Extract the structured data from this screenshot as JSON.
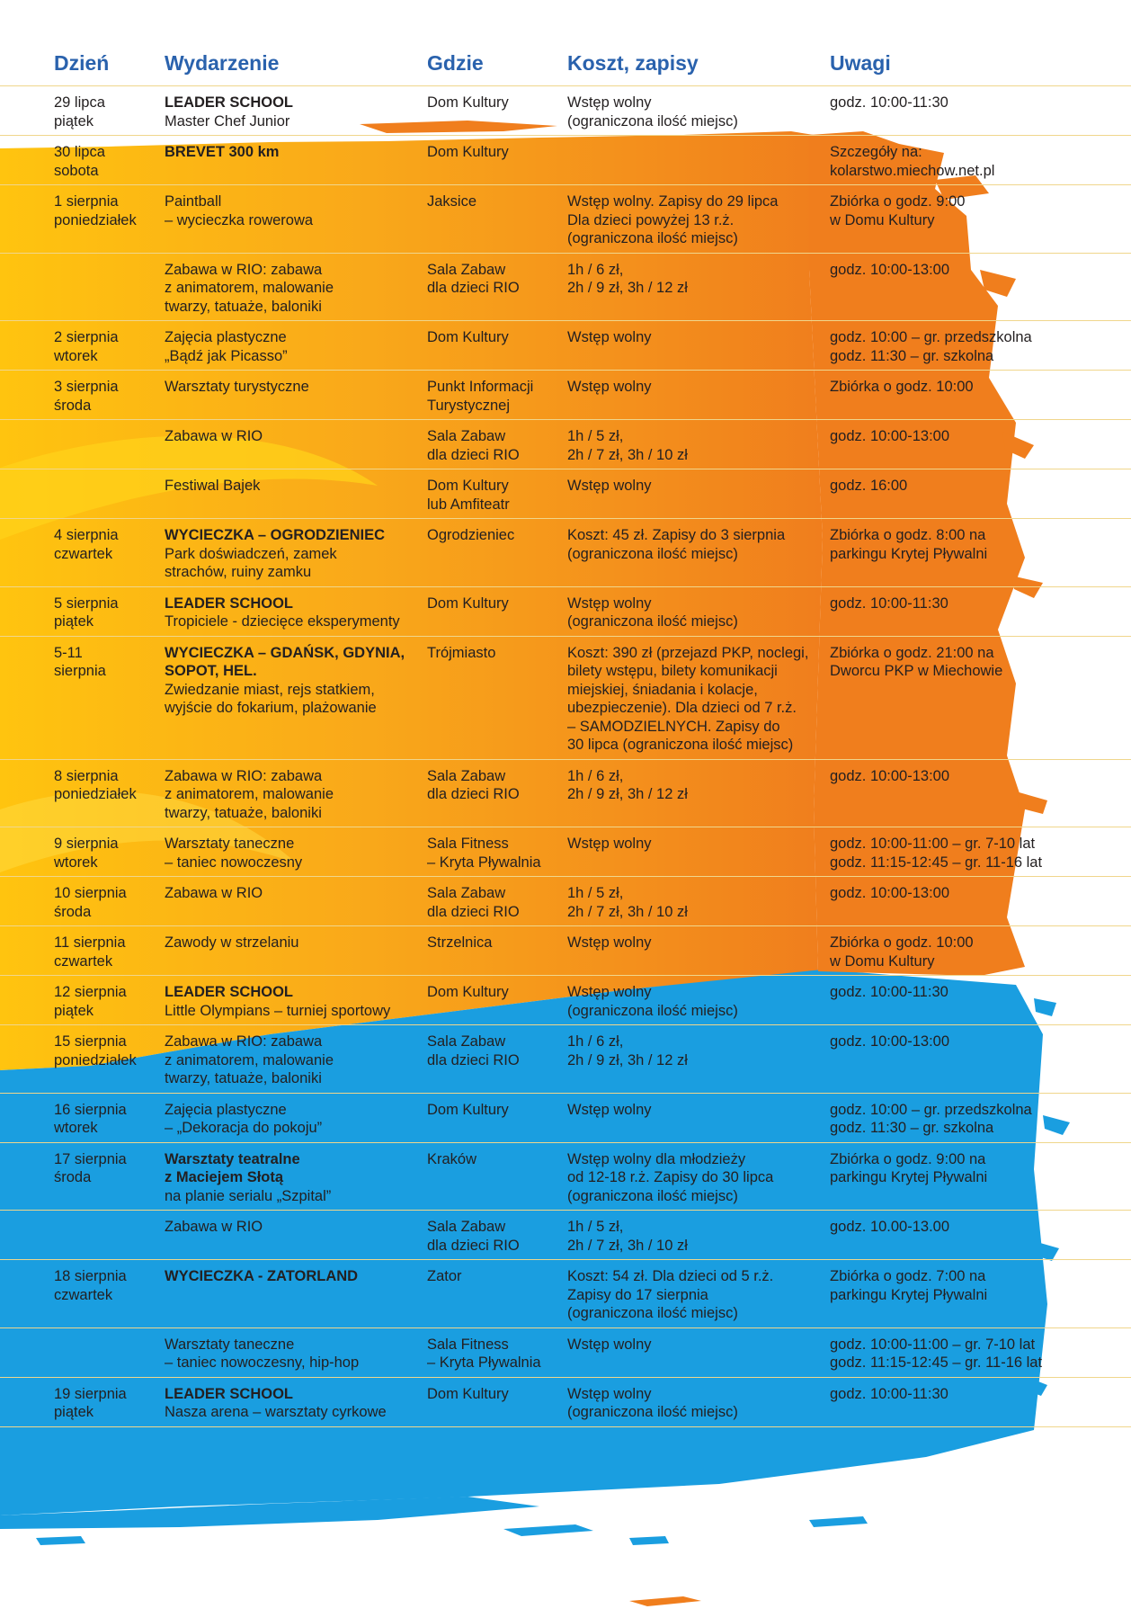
{
  "headers": {
    "day": "Dzień",
    "event": "Wydarzenie",
    "place": "Gdzie",
    "cost": "Koszt, zapisy",
    "notes": "Uwagi"
  },
  "colors": {
    "header_text": "#2a62ad",
    "rule": "#f0d68c",
    "orange": "#f08a1e",
    "yellow": "#fbb912",
    "blue": "#1a9ee0",
    "text": "#231f20"
  },
  "rows": [
    {
      "day": "29 lipca\npiątek",
      "title": "LEADER SCHOOL",
      "event": "Master Chef Junior",
      "place": "Dom Kultury",
      "cost": "Wstęp wolny\n(ograniczona ilość miejsc)",
      "notes": "godz. 10:00-11:30"
    },
    {
      "day": "30 lipca\nsobota",
      "title": "BREVET 300 km",
      "event": "",
      "place": "Dom Kultury",
      "cost": "",
      "notes": "Szczegóły na:\nkolarstwo.miechow.net.pl"
    },
    {
      "day": "1 sierpnia\nponiedziałek",
      "title": "",
      "event": "Paintball\n– wycieczka rowerowa",
      "place": "Jaksice",
      "cost": "Wstęp wolny. Zapisy do 29 lipca\nDla dzieci powyżej 13 r.ż.\n(ograniczona ilość miejsc)",
      "notes": "Zbiórka o godz. 9:00\nw Domu Kultury"
    },
    {
      "day": "",
      "title": "",
      "event": "Zabawa w RIO: zabawa\nz animatorem, malowanie\ntwarzy, tatuaże, baloniki",
      "place": "Sala Zabaw\ndla dzieci RIO",
      "cost": "1h / 6 zł,\n2h / 9 zł, 3h / 12 zł",
      "notes": "godz. 10:00-13:00"
    },
    {
      "day": "2 sierpnia\nwtorek",
      "title": "",
      "event": "Zajęcia plastyczne\n„Bądź jak Picasso”",
      "place": "Dom Kultury",
      "cost": "Wstęp wolny",
      "notes": "godz. 10:00 – gr. przedszkolna\ngodz. 11:30 – gr. szkolna"
    },
    {
      "day": "3 sierpnia\nśroda",
      "title": "",
      "event": "Warsztaty turystyczne",
      "place": "Punkt Informacji\nTurystycznej",
      "cost": "Wstęp wolny",
      "notes": "Zbiórka o godz. 10:00"
    },
    {
      "day": "",
      "title": "",
      "event": "Zabawa w RIO",
      "place": "Sala Zabaw\ndla dzieci RIO",
      "cost": "1h / 5 zł,\n2h / 7 zł, 3h / 10 zł",
      "notes": "godz. 10:00-13:00"
    },
    {
      "day": "",
      "title": "",
      "event": "Festiwal Bajek",
      "place": "Dom Kultury\nlub Amfiteatr",
      "cost": "Wstęp wolny",
      "notes": "godz. 16:00"
    },
    {
      "day": "4 sierpnia\nczwartek",
      "title": "WYCIECZKA – OGRODZIENIEC",
      "event": "Park doświadczeń, zamek\nstrachów, ruiny zamku",
      "place": "Ogrodzieniec",
      "cost": "Koszt: 45 zł. Zapisy do 3 sierpnia\n(ograniczona ilość miejsc)",
      "notes": "Zbiórka o godz. 8:00 na\nparkingu Krytej Pływalni"
    },
    {
      "day": "5 sierpnia\npiątek",
      "title": "LEADER SCHOOL",
      "event": "Tropiciele - dziecięce eksperymenty",
      "place": "Dom Kultury",
      "cost": "Wstęp wolny\n(ograniczona ilość miejsc)",
      "notes": "godz. 10:00-11:30"
    },
    {
      "day": "5-11\nsierpnia",
      "title": "WYCIECZKA – GDAŃSK, GDYNIA,\nSOPOT, HEL.",
      "event": "Zwiedzanie miast, rejs statkiem,\nwyjście do fokarium, plażowanie",
      "place": "Trójmiasto",
      "cost": "Koszt: 390 zł (przejazd PKP, noclegi,\nbilety wstępu, bilety komunikacji\nmiejskiej, śniadania i kolacje,\nubezpieczenie). Dla dzieci od 7 r.ż.\n– SAMODZIELNYCH. Zapisy do\n30 lipca (ograniczona ilość miejsc)",
      "notes": "Zbiórka o godz. 21:00 na\nDworcu PKP w Miechowie"
    },
    {
      "day": "8 sierpnia\nponiedziałek",
      "title": "",
      "event": "Zabawa w RIO: zabawa\nz animatorem, malowanie\ntwarzy, tatuaże, baloniki",
      "place": "Sala Zabaw\ndla dzieci RIO",
      "cost": "1h / 6 zł,\n2h / 9 zł, 3h / 12 zł",
      "notes": "godz. 10:00-13:00"
    },
    {
      "day": "9 sierpnia\nwtorek",
      "title": "",
      "event": "Warsztaty taneczne\n– taniec nowoczesny",
      "place": "Sala Fitness\n– Kryta Pływalnia",
      "cost": "Wstęp wolny",
      "notes": "godz. 10:00-11:00 – gr. 7-10 lat\ngodz. 11:15-12:45 – gr. 11-16 lat"
    },
    {
      "day": "10 sierpnia\nśroda",
      "title": "",
      "event": "Zabawa w RIO",
      "place": "Sala Zabaw\ndla dzieci RIO",
      "cost": "1h / 5 zł,\n2h / 7 zł, 3h / 10 zł",
      "notes": "godz. 10:00-13:00"
    },
    {
      "day": "11 sierpnia\nczwartek",
      "title": "",
      "event": "Zawody w strzelaniu",
      "place": "Strzelnica",
      "cost": "Wstęp wolny",
      "notes": "Zbiórka o godz. 10:00\nw Domu Kultury"
    },
    {
      "day": "12 sierpnia\npiątek",
      "title": "LEADER SCHOOL",
      "event": "Little Olympians – turniej sportowy",
      "place": "Dom Kultury",
      "cost": "Wstęp wolny\n(ograniczona ilość miejsc)",
      "notes": "godz. 10:00-11:30"
    },
    {
      "day": "15 sierpnia\nponiedziałek",
      "title": "",
      "event": "Zabawa w RIO: zabawa\nz animatorem, malowanie\ntwarzy, tatuaże, baloniki",
      "place": "Sala Zabaw\ndla dzieci RIO",
      "cost": "1h / 6 zł,\n2h / 9 zł, 3h / 12 zł",
      "notes": "godz. 10:00-13:00"
    },
    {
      "day": "16 sierpnia\nwtorek",
      "title": "",
      "event": "Zajęcia plastyczne\n– „Dekoracja do pokoju”",
      "place": "Dom Kultury",
      "cost": "Wstęp wolny",
      "notes": "godz. 10:00 – gr. przedszkolna\ngodz. 11:30 – gr. szkolna"
    },
    {
      "day": "17 sierpnia\nśroda",
      "title": "Warsztaty teatralne\nz Maciejem Słotą",
      "event": "na planie serialu „Szpital”",
      "place": "Kraków",
      "cost": "Wstęp wolny dla młodzieży\nod 12-18 r.ż. Zapisy do 30 lipca\n(ograniczona ilość miejsc)",
      "notes": "Zbiórka o godz. 9:00 na\nparkingu Krytej Pływalni"
    },
    {
      "day": "",
      "title": "",
      "event": "Zabawa w RIO",
      "place": "Sala Zabaw\ndla dzieci RIO",
      "cost": "1h / 5 zł,\n2h / 7 zł, 3h / 10 zł",
      "notes": "godz. 10.00-13.00"
    },
    {
      "day": "18 sierpnia\nczwartek",
      "title": "WYCIECZKA - ZATORLAND",
      "event": "",
      "place": "Zator",
      "cost": "Koszt: 54 zł. Dla dzieci od 5 r.ż.\nZapisy do 17 sierpnia\n(ograniczona ilość miejsc)",
      "notes": "Zbiórka o godz. 7:00 na\nparkingu Krytej Pływalni"
    },
    {
      "day": "",
      "title": "",
      "event": "Warsztaty taneczne\n– taniec nowoczesny, hip-hop",
      "place": "Sala Fitness\n– Kryta Pływalnia",
      "cost": "Wstęp wolny",
      "notes": "godz. 10:00-11:00 – gr. 7-10 lat\ngodz. 11:15-12:45 – gr. 11-16 lat"
    },
    {
      "day": "19 sierpnia\npiątek",
      "title": "LEADER SCHOOL",
      "event": "Nasza arena – warsztaty cyrkowe",
      "place": "Dom Kultury",
      "cost": "Wstęp wolny\n(ograniczona ilość miejsc)",
      "notes": "godz. 10:00-11:30"
    }
  ]
}
